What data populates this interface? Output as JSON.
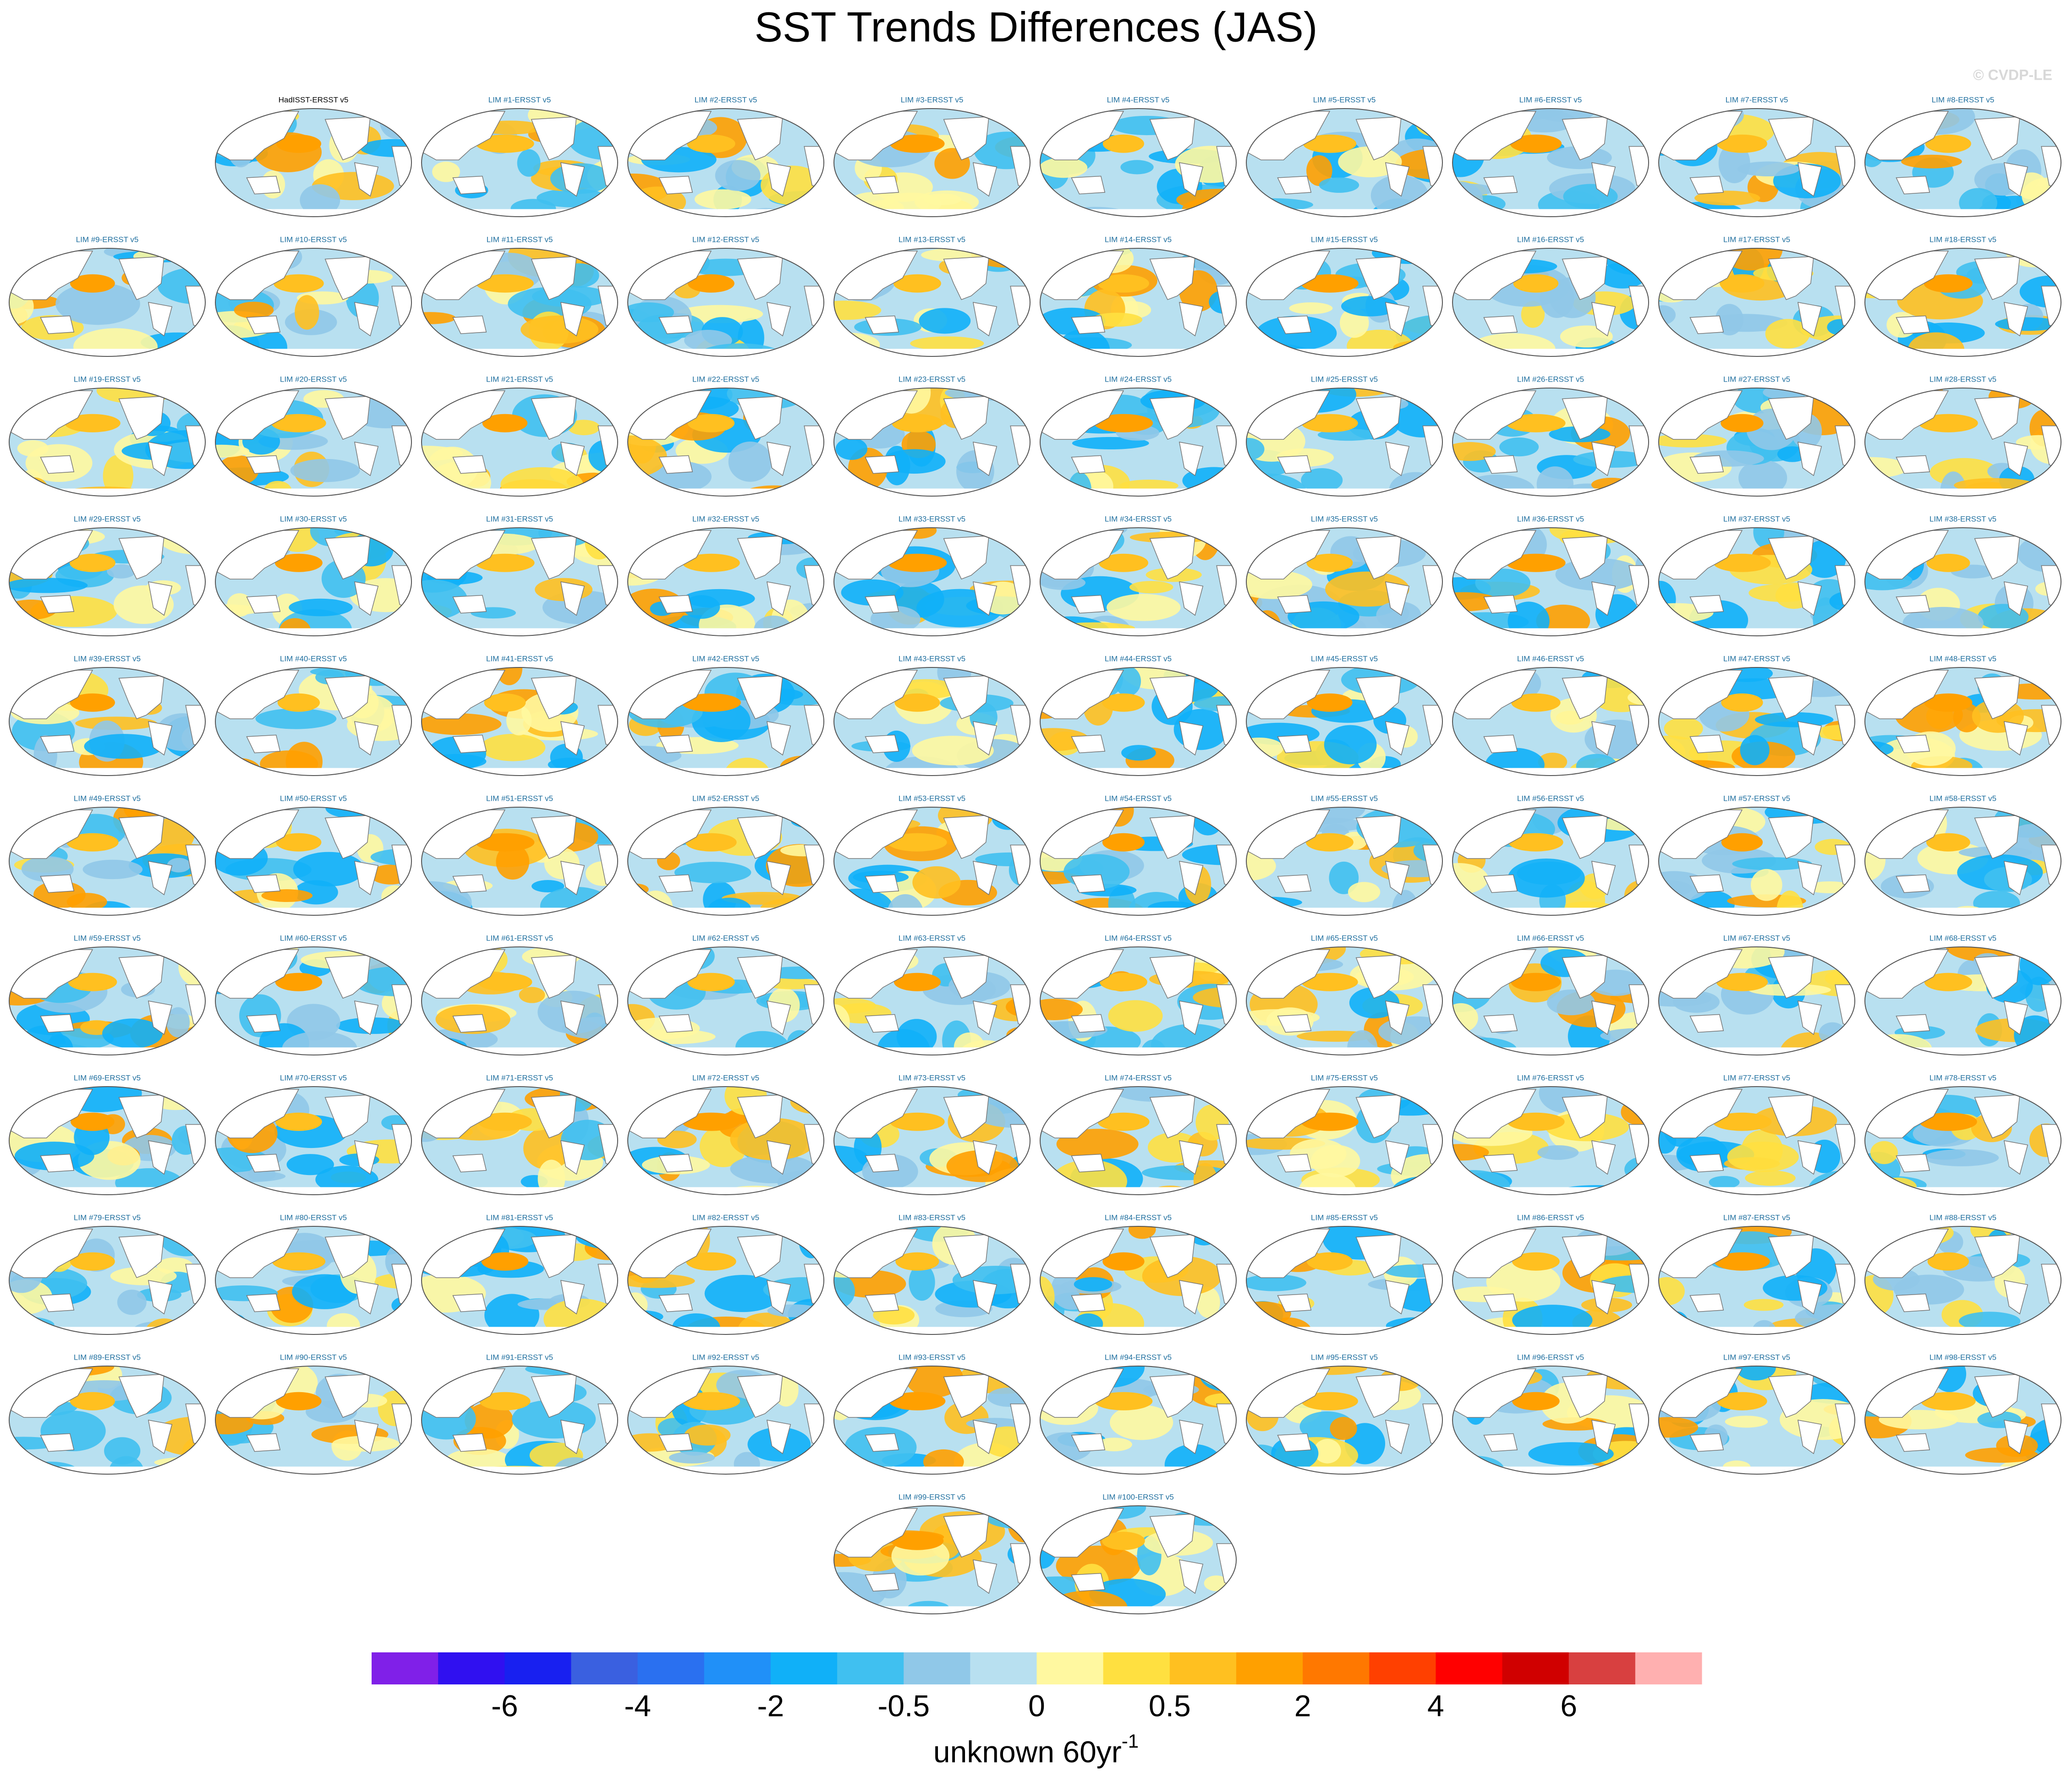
{
  "title": "SST Trends Differences (JAS)",
  "credit": "© CVDP-LE",
  "panels": [
    "HadISST-ERSST v5",
    "LIM #1-ERSST v5",
    "LIM #2-ERSST v5",
    "LIM #3-ERSST v5",
    "LIM #4-ERSST v5",
    "LIM #5-ERSST v5",
    "LIM #6-ERSST v5",
    "LIM #7-ERSST v5",
    "LIM #8-ERSST v5",
    "LIM #9-ERSST v5",
    "LIM #10-ERSST v5",
    "LIM #11-ERSST v5",
    "LIM #12-ERSST v5",
    "LIM #13-ERSST v5",
    "LIM #14-ERSST v5",
    "LIM #15-ERSST v5",
    "LIM #16-ERSST v5",
    "LIM #17-ERSST v5",
    "LIM #18-ERSST v5",
    "LIM #19-ERSST v5",
    "LIM #20-ERSST v5",
    "LIM #21-ERSST v5",
    "LIM #22-ERSST v5",
    "LIM #23-ERSST v5",
    "LIM #24-ERSST v5",
    "LIM #25-ERSST v5",
    "LIM #26-ERSST v5",
    "LIM #27-ERSST v5",
    "LIM #28-ERSST v5",
    "LIM #29-ERSST v5",
    "LIM #30-ERSST v5",
    "LIM #31-ERSST v5",
    "LIM #32-ERSST v5",
    "LIM #33-ERSST v5",
    "LIM #34-ERSST v5",
    "LIM #35-ERSST v5",
    "LIM #36-ERSST v5",
    "LIM #37-ERSST v5",
    "LIM #38-ERSST v5",
    "LIM #39-ERSST v5",
    "LIM #40-ERSST v5",
    "LIM #41-ERSST v5",
    "LIM #42-ERSST v5",
    "LIM #43-ERSST v5",
    "LIM #44-ERSST v5",
    "LIM #45-ERSST v5",
    "LIM #46-ERSST v5",
    "LIM #47-ERSST v5",
    "LIM #48-ERSST v5",
    "LIM #49-ERSST v5",
    "LIM #50-ERSST v5",
    "LIM #51-ERSST v5",
    "LIM #52-ERSST v5",
    "LIM #53-ERSST v5",
    "LIM #54-ERSST v5",
    "LIM #55-ERSST v5",
    "LIM #56-ERSST v5",
    "LIM #57-ERSST v5",
    "LIM #58-ERSST v5",
    "LIM #59-ERSST v5",
    "LIM #60-ERSST v5",
    "LIM #61-ERSST v5",
    "LIM #62-ERSST v5",
    "LIM #63-ERSST v5",
    "LIM #64-ERSST v5",
    "LIM #65-ERSST v5",
    "LIM #66-ERSST v5",
    "LIM #67-ERSST v5",
    "LIM #68-ERSST v5",
    "LIM #69-ERSST v5",
    "LIM #70-ERSST v5",
    "LIM #71-ERSST v5",
    "LIM #72-ERSST v5",
    "LIM #73-ERSST v5",
    "LIM #74-ERSST v5",
    "LIM #75-ERSST v5",
    "LIM #76-ERSST v5",
    "LIM #77-ERSST v5",
    "LIM #78-ERSST v5",
    "LIM #79-ERSST v5",
    "LIM #80-ERSST v5",
    "LIM #81-ERSST v5",
    "LIM #82-ERSST v5",
    "LIM #83-ERSST v5",
    "LIM #84-ERSST v5",
    "LIM #85-ERSST v5",
    "LIM #86-ERSST v5",
    "LIM #87-ERSST v5",
    "LIM #88-ERSST v5",
    "LIM #89-ERSST v5",
    "LIM #90-ERSST v5",
    "LIM #91-ERSST v5",
    "LIM #92-ERSST v5",
    "LIM #93-ERSST v5",
    "LIM #94-ERSST v5",
    "LIM #95-ERSST v5",
    "LIM #96-ERSST v5",
    "LIM #97-ERSST v5",
    "LIM #98-ERSST v5",
    "LIM #99-ERSST v5",
    "LIM #100-ERSST v5"
  ],
  "colorbar": {
    "colors": [
      "#8020e8",
      "#3010f0",
      "#1820f0",
      "#3a60e0",
      "#2a70f0",
      "#2090f8",
      "#10b0f8",
      "#40c0f0",
      "#90c8e8",
      "#b8e0f0",
      "#fff8a0",
      "#ffe040",
      "#ffc020",
      "#ffa000",
      "#ff7800",
      "#ff4000",
      "#ff0000",
      "#d00000",
      "#d84040",
      "#ffb0b0"
    ],
    "ticks": [
      -6,
      -4,
      -2,
      -0.5,
      0,
      0.5,
      2,
      4,
      6
    ],
    "label": "unknown 60yr",
    "label_superscript": "-1"
  }
}
